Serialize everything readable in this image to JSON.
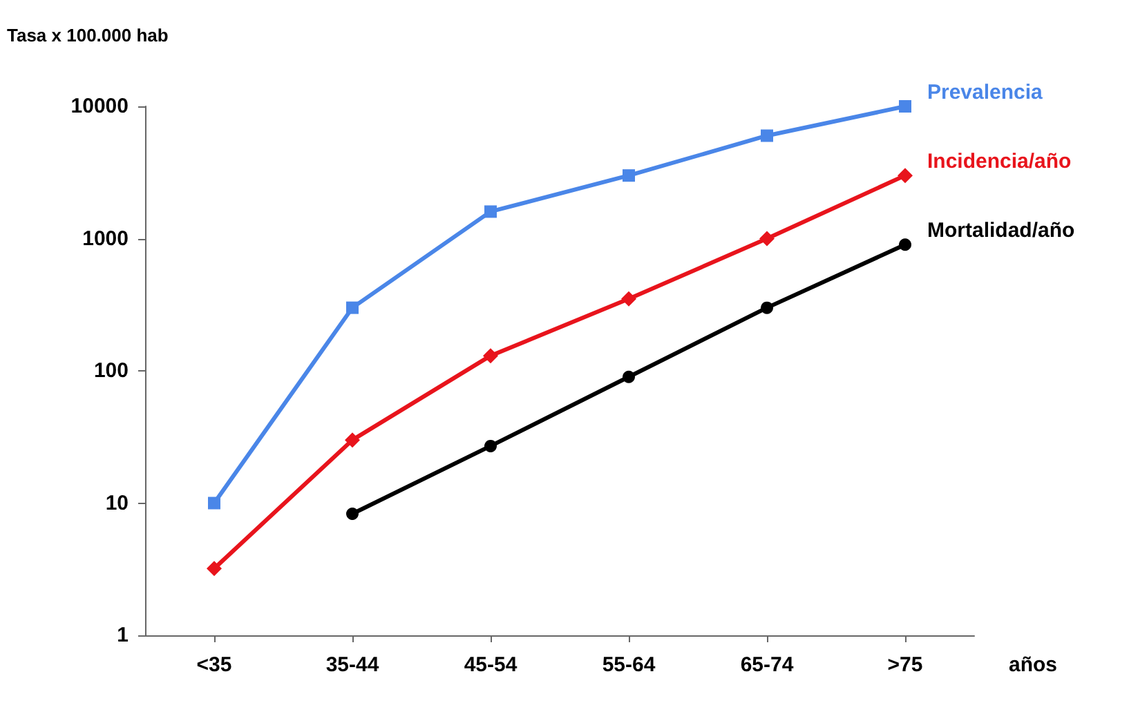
{
  "chart_data": {
    "type": "line",
    "ylabel": "Tasa x 100.000 hab",
    "xlabel": "años",
    "categories": [
      "<35",
      "35-44",
      "45-54",
      "55-64",
      "65-74",
      ">75"
    ],
    "log": "y",
    "ylim": [
      1,
      10000
    ],
    "yticks": [
      1,
      10,
      100,
      1000,
      10000
    ],
    "grid": false,
    "legend": false,
    "line_style": "solid",
    "series": [
      {
        "name": "Prevalencia",
        "color": "#4a86e8",
        "marker": "square",
        "values": [
          10,
          300,
          1600,
          3000,
          6000,
          10000
        ]
      },
      {
        "name": "Incidencia/año",
        "color": "#e8141c",
        "marker": "diamond",
        "values": [
          3.2,
          30,
          130,
          350,
          1000,
          3000
        ]
      },
      {
        "name": "Mortalidad/año",
        "color": "#000000",
        "marker": "circle",
        "values": [
          null,
          8.3,
          27,
          90,
          300,
          900
        ]
      }
    ]
  }
}
